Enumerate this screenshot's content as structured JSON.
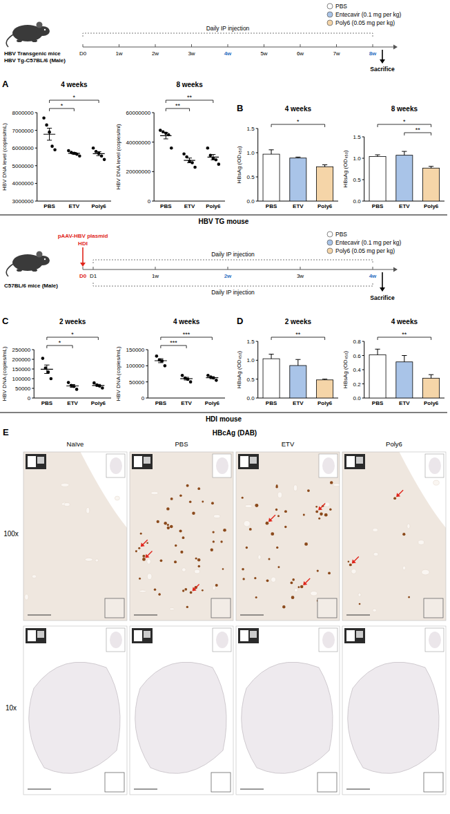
{
  "chart_data": [
    {
      "type": "dot",
      "panel": "A",
      "title": "4 weeks",
      "y_label": "HBV DNA level (copies/mL)",
      "categories": [
        "PBS",
        "ETV",
        "Poly6"
      ],
      "color": "#000000",
      "points": [
        [
          7700000,
          7300000,
          6900000,
          6100000,
          5900000
        ],
        [
          5850000,
          5750000,
          5700000,
          5650000,
          5550000
        ],
        [
          6000000,
          5800000,
          5700000,
          5550000,
          5350000
        ]
      ],
      "mean": [
        6780000,
        5700000,
        5680000
      ],
      "sem": [
        340000,
        50000,
        110000
      ],
      "ylim": [
        3000000,
        8000000
      ],
      "yticks": [
        3000000,
        4000000,
        5000000,
        6000000,
        7000000,
        8000000
      ],
      "significance": [
        {
          "groups": [
            "PBS",
            "ETV"
          ],
          "label": "*"
        },
        {
          "groups": [
            "PBS",
            "Poly6"
          ],
          "label": "*"
        }
      ]
    },
    {
      "type": "dot",
      "title": "8 weeks",
      "y_label": "HBV DNA level (copies/ml)",
      "categories": [
        "PBS",
        "ETV",
        "Poly6"
      ],
      "color": "#000000",
      "points": [
        [
          48000000,
          47000000,
          46000000,
          45000000,
          36000000
        ],
        [
          32000000,
          30000000,
          27000000,
          26000000,
          23000000
        ],
        [
          36000000,
          31000000,
          29000000,
          28000000,
          25000000
        ]
      ],
      "mean": [
        44400000,
        27600000,
        29800000
      ],
      "sem": [
        2200000,
        1600000,
        1800000
      ],
      "ylim": [
        0,
        60000000
      ],
      "yticks": [
        0,
        20000000,
        40000000,
        60000000
      ],
      "significance": [
        {
          "groups": [
            "PBS",
            "ETV"
          ],
          "label": "**"
        },
        {
          "groups": [
            "PBS",
            "Poly6"
          ],
          "label": "**"
        }
      ]
    },
    {
      "type": "bar",
      "panel": "B",
      "title": "4 weeks",
      "y_label": "HBsAg (OD₄₅₀)",
      "categories": [
        "PBS",
        "ETV",
        "Poly6"
      ],
      "colors": [
        "#ffffff",
        "#a9c4e8",
        "#f5d5a8"
      ],
      "values": [
        0.97,
        0.89,
        0.71
      ],
      "errors": [
        0.09,
        0.02,
        0.04
      ],
      "ylim": [
        0,
        1.5
      ],
      "yticks": [
        {
          "value": 0,
          "label": "0.0"
        },
        {
          "value": 0.5,
          "label": "0.5"
        },
        {
          "value": 1,
          "label": "1.0"
        },
        {
          "value": 1.5,
          "label": "1.5"
        }
      ],
      "significance": [
        {
          "groups": [
            "PBS",
            "Poly6"
          ],
          "label": "*"
        }
      ]
    },
    {
      "type": "bar",
      "title": "8 weeks",
      "y_label": "HBsAg (OD₄₅₀)",
      "categories": [
        "PBS",
        "ETV",
        "Poly6"
      ],
      "colors": [
        "#ffffff",
        "#a9c4e8",
        "#f5d5a8"
      ],
      "values": [
        1.04,
        1.07,
        0.77
      ],
      "errors": [
        0.04,
        0.09,
        0.04
      ],
      "ylim": [
        0,
        1.5
      ],
      "yticks": [
        {
          "value": 0,
          "label": "0.0"
        },
        {
          "value": 0.5,
          "label": "0.5"
        },
        {
          "value": 1,
          "label": "1.0"
        },
        {
          "value": 1.5,
          "label": "1.5"
        }
      ],
      "significance": [
        {
          "groups": [
            "ETV",
            "Poly6"
          ],
          "label": "**"
        },
        {
          "groups": [
            "PBS",
            "Poly6"
          ],
          "label": "*"
        }
      ]
    },
    {
      "type": "dot",
      "panel": "C",
      "title": "2 weeks",
      "y_label": "HBV DNA (copies/mL)",
      "categories": [
        "PBS",
        "ETV",
        "Poly6"
      ],
      "color": "#000000",
      "points": [
        [
          205000,
          155000,
          135000,
          100000
        ],
        [
          80000,
          65000,
          60000,
          45000
        ],
        [
          78000,
          68000,
          62000,
          52000
        ]
      ],
      "mean": [
        148750,
        62500,
        65000
      ],
      "sem": [
        21900,
        7200,
        5400
      ],
      "ylim": [
        0,
        250000
      ],
      "yticks": [
        0,
        50000,
        100000,
        150000,
        200000,
        250000
      ],
      "significance": [
        {
          "groups": [
            "PBS",
            "ETV"
          ],
          "label": "*"
        },
        {
          "groups": [
            "PBS",
            "Poly6"
          ],
          "label": "*"
        }
      ]
    },
    {
      "type": "dot",
      "title": "4 weeks",
      "y_label": "HBV DNA (copies/mL)",
      "categories": [
        "PBS",
        "ETV",
        "Poly6"
      ],
      "color": "#000000",
      "points": [
        [
          130000,
          118000,
          115000,
          100000
        ],
        [
          70000,
          62000,
          58000,
          50000
        ],
        [
          70000,
          65000,
          62000,
          55000
        ]
      ],
      "mean": [
        115750,
        60000,
        63000
      ],
      "sem": [
        6200,
        4200,
        3100
      ],
      "ylim": [
        0,
        150000
      ],
      "yticks": [
        0,
        50000,
        100000,
        150000
      ],
      "significance": [
        {
          "groups": [
            "PBS",
            "ETV"
          ],
          "label": "***"
        },
        {
          "groups": [
            "PBS",
            "Poly6"
          ],
          "label": "***"
        }
      ]
    },
    {
      "type": "bar",
      "panel": "D",
      "title": "2 weeks",
      "y_label": "HBsAg (OD₄₅₀)",
      "categories": [
        "PBS",
        "ETV",
        "Poly6"
      ],
      "colors": [
        "#ffffff",
        "#a9c4e8",
        "#f5d5a8"
      ],
      "values": [
        1.04,
        0.86,
        0.48
      ],
      "errors": [
        0.12,
        0.16,
        0.02
      ],
      "ylim": [
        0,
        1.5
      ],
      "yticks": [
        {
          "value": 0,
          "label": "0.0"
        },
        {
          "value": 0.5,
          "label": "0.5"
        },
        {
          "value": 1,
          "label": "1.0"
        },
        {
          "value": 1.5,
          "label": "1.5"
        }
      ],
      "significance": [
        {
          "groups": [
            "PBS",
            "Poly6"
          ],
          "label": "**"
        }
      ]
    },
    {
      "type": "bar",
      "title": "4 weeks",
      "y_label": "HBsAg (OD₄₅₀)",
      "categories": [
        "PBS",
        "ETV",
        "Poly6"
      ],
      "colors": [
        "#ffffff",
        "#a9c4e8",
        "#f5d5a8"
      ],
      "values": [
        0.61,
        0.51,
        0.28
      ],
      "errors": [
        0.08,
        0.09,
        0.05
      ],
      "ylim": [
        0,
        0.8
      ],
      "yticks": [
        {
          "value": 0,
          "label": "0.0"
        },
        {
          "value": 0.2,
          "label": "0.2"
        },
        {
          "value": 0.4,
          "label": "0.4"
        },
        {
          "value": 0.6,
          "label": "0.6"
        },
        {
          "value": 0.8,
          "label": "0.8"
        }
      ],
      "significance": [
        {
          "groups": [
            "PBS",
            "Poly6"
          ],
          "label": "**"
        }
      ]
    }
  ],
  "schematics": [
    {
      "subject": [
        "HBV Transgenic mice",
        "HBV Tg-C57BL/6 (Male)"
      ],
      "injection_labels": [
        "Daily IP injection"
      ],
      "timepoints": [
        {
          "label": "D0",
          "day": 0,
          "color": "#000000"
        },
        {
          "label": "1w",
          "day": 7,
          "color": "#000000"
        },
        {
          "label": "2w",
          "day": 14,
          "color": "#000000"
        },
        {
          "label": "3w",
          "day": 21,
          "color": "#000000"
        },
        {
          "label": "4w",
          "day": 28,
          "color": "#2f6fbf"
        },
        {
          "label": "5w",
          "day": 35,
          "color": "#000000"
        },
        {
          "label": "6w",
          "day": 42,
          "color": "#000000"
        },
        {
          "label": "7w",
          "day": 49,
          "color": "#000000"
        },
        {
          "label": "8w",
          "day": 56,
          "color": "#2f6fbf"
        }
      ],
      "end": "Sacrifice",
      "legend": [
        {
          "name": "PBS",
          "color": "#ffffff"
        },
        {
          "name": "Entecavir (0.1 mg per kg)",
          "color": "#a9c4e8"
        },
        {
          "name": "Poly6 (0.05 mg per kg)",
          "color": "#f5d5a8"
        }
      ]
    },
    {
      "plasmid": "pAAV-HBV plasmid",
      "method": "HDI",
      "subject": [
        "C57BL/6 mice (Male)"
      ],
      "injection_labels": [
        "Daily IP injection",
        "Daily IP injection"
      ],
      "timepoints": [
        {
          "label": "D0",
          "day": 0,
          "color": "#e0251b"
        },
        {
          "label": "D1",
          "day": 1,
          "color": "#000000"
        },
        {
          "label": "1w",
          "day": 7,
          "color": "#000000"
        },
        {
          "label": "2w",
          "day": 14,
          "color": "#2f6fbf"
        },
        {
          "label": "3w",
          "day": 21,
          "color": "#000000"
        },
        {
          "label": "4w",
          "day": 28,
          "color": "#2f6fbf"
        }
      ],
      "end": "Sacrifice",
      "legend": [
        {
          "name": "PBS",
          "color": "#ffffff"
        },
        {
          "name": "Entecavir (0.1 mg per kg)",
          "color": "#a9c4e8"
        },
        {
          "name": "Poly6 (0.05 mg per kg)",
          "color": "#f5d5a8"
        }
      ]
    }
  ],
  "sections": [
    "HBV TG mouse",
    "HDI mouse"
  ],
  "panel_e": {
    "panel": "E",
    "title": "HBcAg (DAB)",
    "columns": [
      "Naïve",
      "PBS",
      "ETV",
      "Poly6"
    ],
    "rows": [
      "100x",
      "10x"
    ]
  }
}
